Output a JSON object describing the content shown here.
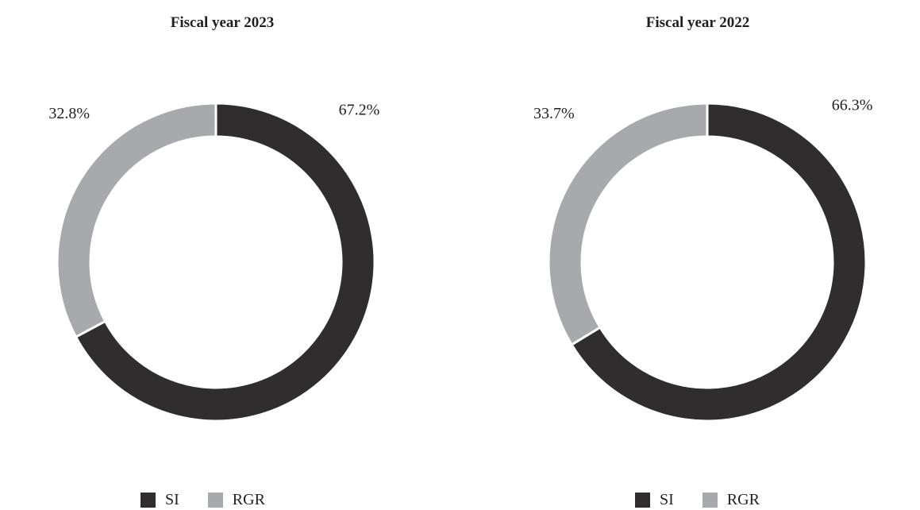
{
  "chart_data": [
    {
      "type": "pie",
      "title": "Fiscal year 2023",
      "categories": [
        "SI",
        "RGR"
      ],
      "values": [
        67.2,
        32.8
      ],
      "labels": [
        "67.2%",
        "32.8%"
      ],
      "colors": [
        "#2f2d2e",
        "#a7a9ac"
      ],
      "legend": "bottom"
    },
    {
      "type": "pie",
      "title": "Fiscal year 2022",
      "categories": [
        "SI",
        "RGR"
      ],
      "values": [
        66.3,
        33.7
      ],
      "labels": [
        "66.3%",
        "33.7%"
      ],
      "colors": [
        "#2f2d2e",
        "#a7a9ac"
      ],
      "legend": "bottom"
    }
  ]
}
